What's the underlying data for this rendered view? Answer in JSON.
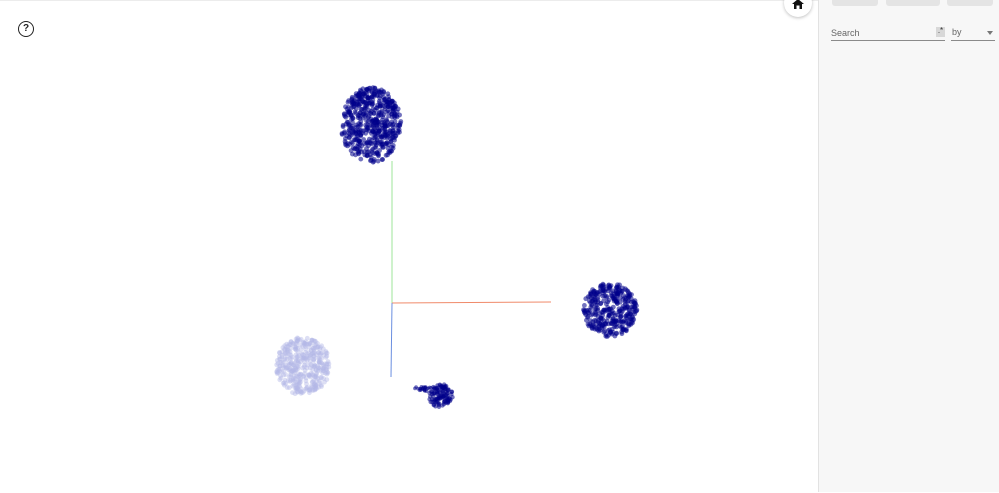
{
  "viewport": {
    "help_glyph": "?",
    "home_icon": "home-icon",
    "help_icon": "help-circle-icon"
  },
  "scene_colors": {
    "point": "#00008b",
    "point_faded": "#b4b7e6",
    "axis_x": "#f08a6a",
    "axis_y": "#9ee69a",
    "axis_z": "#6a8ee0"
  },
  "panel": {
    "search_placeholder": "Search",
    "regex_glyph": ".*",
    "by_label": "by"
  }
}
